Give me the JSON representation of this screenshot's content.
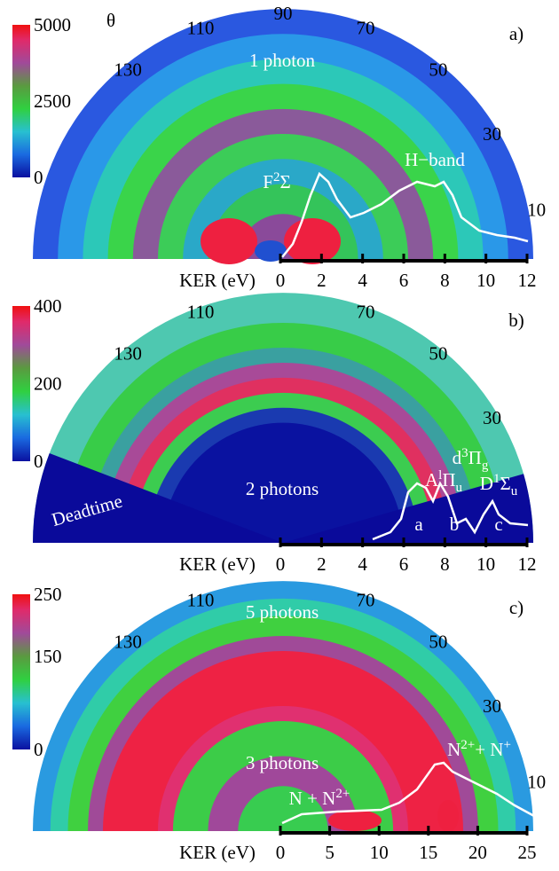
{
  "panels": [
    {
      "label": "a)",
      "theta_label": "θ",
      "colorbar_ticks": [
        5000,
        2500,
        0
      ],
      "angle_labels": [
        130,
        110,
        90,
        70,
        50,
        30,
        10
      ],
      "ker_label": "KER (eV)",
      "ker_ticks": [
        0,
        2,
        4,
        6,
        8,
        10,
        12
      ],
      "annotations": [
        [
          {
            "t": "1 photon"
          }
        ],
        [
          {
            "t": "F"
          },
          {
            "t": "2",
            "sup": true
          },
          {
            "t": "Σ"
          }
        ],
        [
          {
            "t": "H−band"
          }
        ]
      ]
    },
    {
      "label": "b)",
      "colorbar_ticks": [
        400,
        200,
        0
      ],
      "angle_labels": [
        130,
        110,
        70,
        50,
        30
      ],
      "ker_label": "KER (eV)",
      "ker_ticks": [
        0,
        2,
        4,
        6,
        8,
        10,
        12
      ],
      "annotations": [
        [
          {
            "t": "Deadtime"
          }
        ],
        [
          {
            "t": "2 photons"
          }
        ],
        [
          {
            "t": "A"
          },
          {
            "t": "l",
            "sup": true
          },
          {
            "t": "Π"
          },
          {
            "t": "u",
            "sub": true
          }
        ],
        [
          {
            "t": "d"
          },
          {
            "t": "3",
            "sup": true
          },
          {
            "t": "Π"
          },
          {
            "t": "g",
            "sub": true
          }
        ],
        [
          {
            "t": "D"
          },
          {
            "t": "1",
            "sup": true
          },
          {
            "t": "Σ"
          },
          {
            "t": "u",
            "sub": true
          }
        ],
        [
          {
            "t": "a"
          }
        ],
        [
          {
            "t": "b"
          }
        ],
        [
          {
            "t": "c"
          }
        ]
      ]
    },
    {
      "label": "c)",
      "colorbar_ticks": [
        250,
        150,
        0
      ],
      "angle_labels": [
        130,
        110,
        70,
        50,
        30,
        10
      ],
      "ker_label": "KER (eV)",
      "ker_ticks": [
        0,
        5,
        10,
        15,
        20,
        25
      ],
      "annotations": [
        [
          {
            "t": "5 photons"
          }
        ],
        [
          {
            "t": "3 photons"
          }
        ],
        [
          {
            "t": "N + N"
          },
          {
            "t": "2+",
            "sup": true
          }
        ],
        [
          {
            "t": "N"
          },
          {
            "t": "2+",
            "sup": true
          },
          {
            "t": "+ N"
          },
          {
            "t": "+",
            "sup": true
          }
        ]
      ]
    }
  ]
}
